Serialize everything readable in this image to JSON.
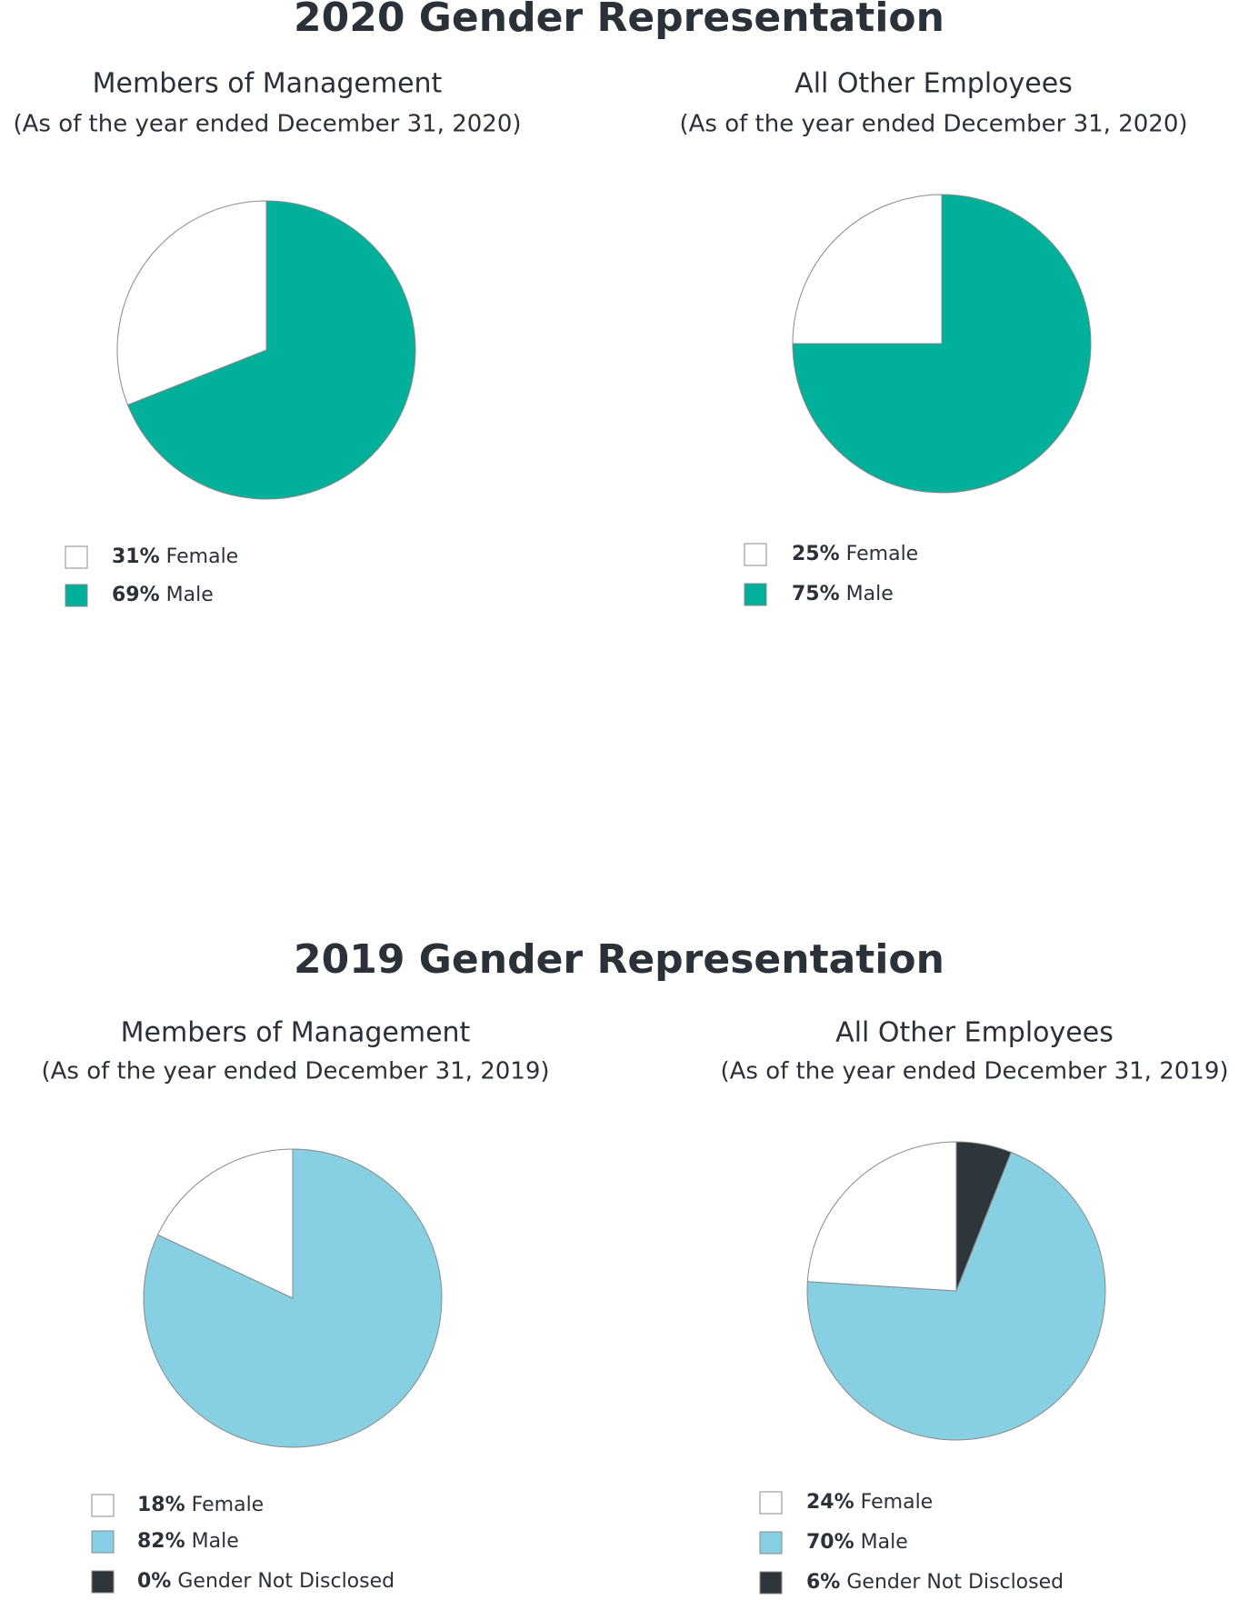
{
  "headings": [
    "2020 Gender Representation",
    "2019 Gender Representation"
  ],
  "chart_data": [
    {
      "type": "pie",
      "title": "Members of Management",
      "subtitle": "(As of the year ended December 31, 2020)",
      "categories": [
        "Female",
        "Male"
      ],
      "values": [
        31,
        69
      ],
      "value_labels": [
        "31%",
        "69%"
      ],
      "colors": [
        "#ffffff",
        "#00b09b"
      ]
    },
    {
      "type": "pie",
      "title": "All Other Employees",
      "subtitle": "(As of the year ended December 31, 2020)",
      "categories": [
        "Female",
        "Male"
      ],
      "values": [
        25,
        75
      ],
      "value_labels": [
        "25%",
        "75%"
      ],
      "colors": [
        "#ffffff",
        "#00b09b"
      ]
    },
    {
      "type": "pie",
      "title": "Members of Management",
      "subtitle": "(As of the year ended December 31, 2019)",
      "categories": [
        "Female",
        "Male",
        "Gender Not Disclosed"
      ],
      "values": [
        18,
        82,
        0
      ],
      "value_labels": [
        "18%",
        "82%",
        "0%"
      ],
      "colors": [
        "#ffffff",
        "#87d0e3",
        "#2f363b"
      ]
    },
    {
      "type": "pie",
      "title": "All Other Employees",
      "subtitle": "(As of the year ended December 31, 2019)",
      "categories": [
        "Female",
        "Male",
        "Gender Not Disclosed"
      ],
      "values": [
        24,
        70,
        6
      ],
      "value_labels": [
        "24%",
        "70%",
        "6%"
      ],
      "colors": [
        "#ffffff",
        "#87d0e3",
        "#2f363b"
      ]
    }
  ]
}
